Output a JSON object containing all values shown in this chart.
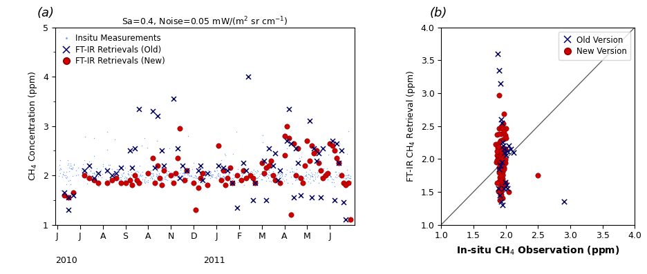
{
  "title_a": "Sa=0.4, Noise=0.05 mW/(m$^2$ sr cm$^{-1}$)",
  "label_a": "(a)",
  "label_b": "(b)",
  "xlabel_b": "In-situ CH$_4$ Observation (ppm)",
  "ylabel_a": "CH$_4$ Concentration (ppm)",
  "ylabel_b": "FT-IR CH$_4$ Retrieval (ppm)",
  "ylim_a": [
    1.0,
    5.0
  ],
  "xlim_b": [
    1.0,
    4.0
  ],
  "ylim_b": [
    1.0,
    4.0
  ],
  "xtick_labels_a": [
    "J",
    "J",
    "A",
    "S",
    "A",
    "N",
    "D",
    "J",
    "F",
    "M",
    "A",
    "M",
    "J"
  ],
  "insitu_color": "#6699ff",
  "old_color": "#000066",
  "new_color": "#cc0000",
  "legend_a": [
    "Insitu Measurements",
    "FT-IR Retrievals (Old)",
    "FT-IR Retrievals (New)"
  ],
  "legend_b": [
    "Old Version",
    "New Version"
  ],
  "background": "#ffffff"
}
